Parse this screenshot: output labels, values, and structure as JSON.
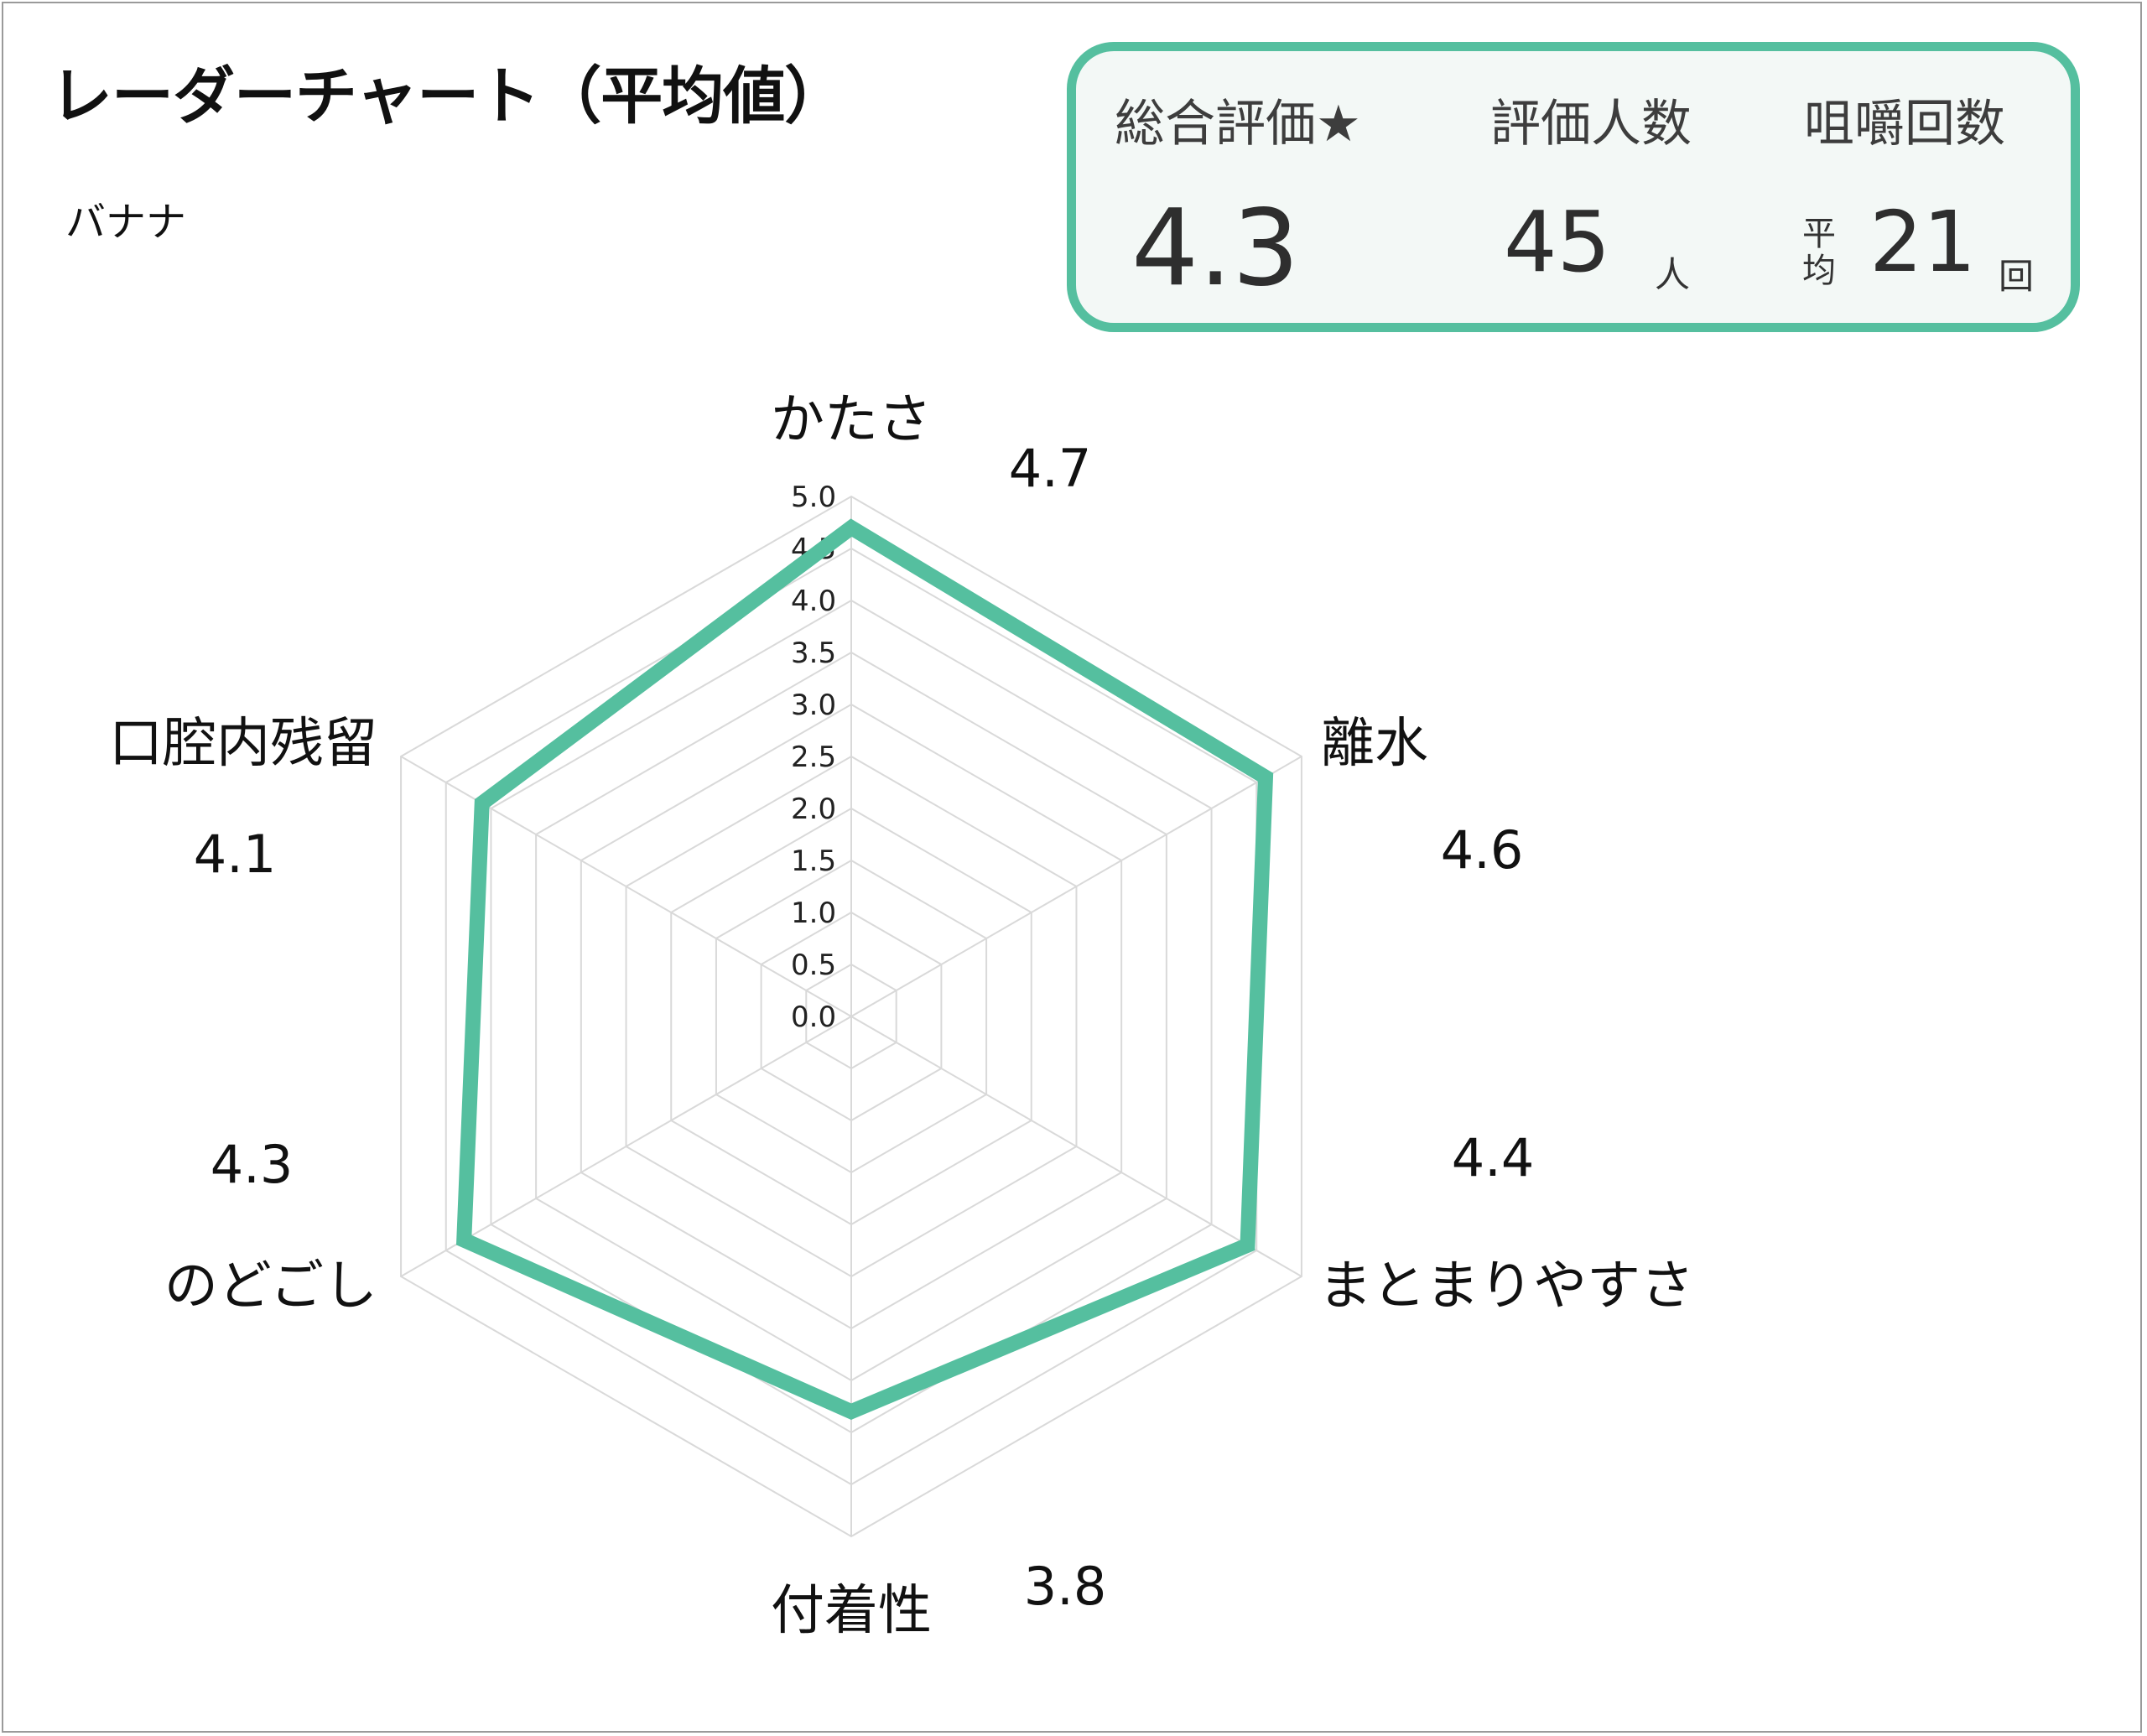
{
  "title": "レーダーチャート（平均値）",
  "product": "バナナ",
  "summary": {
    "rating_label": "総合評価★",
    "rating_value": "4.3",
    "count_label": "評価人数",
    "count_value": "45",
    "count_unit": "人",
    "chew_label": "咀嚼回数",
    "chew_prefix": "平均",
    "chew_value": "21",
    "chew_unit": "回"
  },
  "colors": {
    "series": "#55bf9f",
    "grid": "#d9d9d9",
    "card_border": "#55bf9f",
    "card_bg": "#f3f8f6"
  },
  "chart_data": {
    "type": "radar",
    "categories": [
      "かたさ",
      "離水",
      "まとまりやすさ",
      "付着性",
      "のどごし",
      "口腔内残留"
    ],
    "values": [
      4.7,
      4.6,
      4.4,
      3.8,
      4.3,
      4.1
    ],
    "value_labels": [
      "4.7",
      "4.6",
      "4.4",
      "3.8",
      "4.3",
      "4.1"
    ],
    "rlim": [
      0,
      5
    ],
    "ticks": [
      "0.0",
      "0.5",
      "1.0",
      "1.5",
      "2.0",
      "2.5",
      "3.0",
      "3.5",
      "4.0",
      "4.5",
      "5.0"
    ],
    "grid": true,
    "legend": "none"
  }
}
